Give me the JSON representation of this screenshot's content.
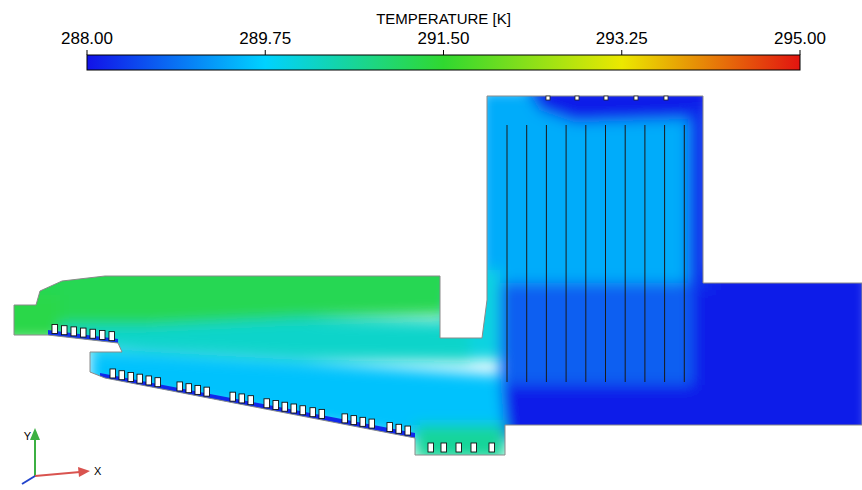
{
  "chart_data": {
    "type": "contour",
    "title": "TEMPERATURE [K]",
    "values": [
      289.4,
      288.7,
      288.1,
      288.1,
      288.1,
      288.3,
      291.2,
      290.0,
      290.2,
      289.6,
      290.6,
      291.3,
      288.2,
      288.3
    ],
    "colorbar_range": [
      288,
      295
    ],
    "colorbar_ticks": [
      {
        "value": 288,
        "label": "288.00"
      },
      {
        "value": 289.75,
        "label": "289.75"
      },
      {
        "value": 291.5,
        "label": "291.50"
      },
      {
        "value": 293.25,
        "label": "293.25"
      },
      {
        "value": 295,
        "label": "295.00"
      }
    ],
    "axis_triad_labels": {
      "x": "X",
      "y": "Y"
    }
  }
}
